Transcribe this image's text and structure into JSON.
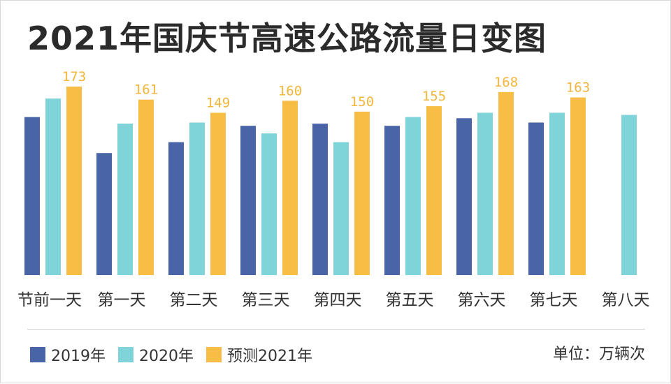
{
  "chart_data": {
    "type": "bar",
    "title": "2021年国庆节高速公路流量日变图",
    "categories": [
      "节前一天",
      "第一天",
      "第二天",
      "第三天",
      "第四天",
      "第五天",
      "第六天",
      "第七天",
      "第八天"
    ],
    "series": [
      {
        "name": "2019年",
        "color": "#4a64a8",
        "values": [
          145,
          112,
          122,
          137,
          139,
          137,
          144,
          140,
          null
        ]
      },
      {
        "name": "2020年",
        "color": "#7fd4d9",
        "values": [
          162,
          139,
          140,
          130,
          122,
          145,
          149,
          149,
          147
        ]
      },
      {
        "name": "预测2021年",
        "color": "#f7bd44",
        "values": [
          173,
          161,
          149,
          160,
          150,
          155,
          168,
          163,
          null
        ]
      }
    ],
    "data_labels": [
      "173",
      "161",
      "149",
      "160",
      "150",
      "155",
      "168",
      "163"
    ],
    "ylim": [
      0,
      180
    ],
    "grid": false,
    "legend_position": "bottom-left",
    "unit_label": "单位：万辆次"
  }
}
